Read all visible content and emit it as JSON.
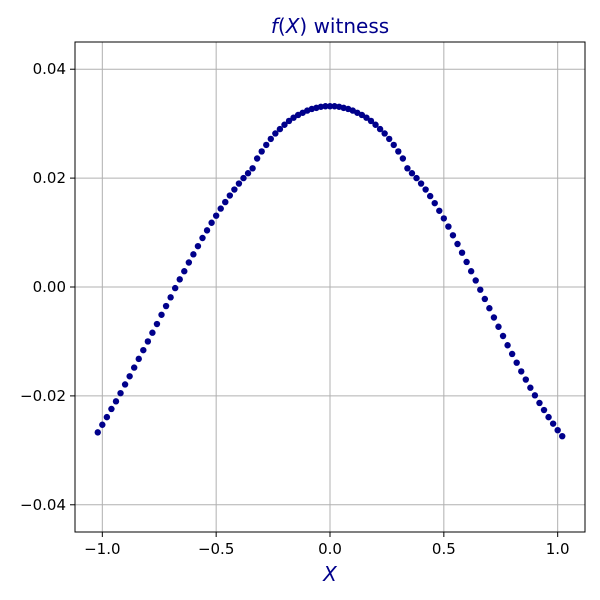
{
  "chart_data": {
    "type": "scatter",
    "title_func": "f",
    "title_open": "(",
    "title_var": "X",
    "title_close": ")",
    "title_rest": " witness",
    "xlabel": "X",
    "ylabel": "",
    "xlim": [
      -1.12,
      1.12
    ],
    "ylim": [
      -0.045,
      0.045
    ],
    "xticks": [
      -1.0,
      -0.5,
      0.0,
      0.5,
      1.0
    ],
    "xtick_labels": [
      "−1.0",
      "−0.5",
      "0.0",
      "0.5",
      "1.0"
    ],
    "yticks": [
      -0.04,
      -0.02,
      0.0,
      0.02,
      0.04
    ],
    "ytick_labels": [
      "−0.04",
      "−0.02",
      "0.00",
      "0.02",
      "0.04"
    ],
    "grid": true,
    "point_color": "#00008b",
    "series": [
      {
        "x": [
          -1.02,
          -1.0,
          -0.98,
          -0.96,
          -0.94,
          -0.92,
          -0.9,
          -0.88,
          -0.86,
          -0.84,
          -0.82,
          -0.8,
          -0.78,
          -0.76,
          -0.74,
          -0.72,
          -0.7,
          -0.68,
          -0.66,
          -0.64,
          -0.62,
          -0.6,
          -0.58,
          -0.56,
          -0.54,
          -0.52,
          -0.5,
          -0.48,
          -0.46,
          -0.44,
          -0.42,
          -0.4,
          -0.38,
          -0.36,
          -0.34,
          -0.32,
          -0.3,
          -0.28,
          -0.26,
          -0.24,
          -0.22,
          -0.2,
          -0.18,
          -0.16,
          -0.14,
          -0.12,
          -0.1,
          -0.08,
          -0.06,
          -0.04,
          -0.02,
          0.0,
          0.02,
          0.04,
          0.06,
          0.08,
          0.1,
          0.12,
          0.14,
          0.16,
          0.18,
          0.2,
          0.22,
          0.24,
          0.26,
          0.28,
          0.3,
          0.32,
          0.34,
          0.36,
          0.38,
          0.4,
          0.42,
          0.44,
          0.46,
          0.48,
          0.5,
          0.52,
          0.54,
          0.56,
          0.58,
          0.6,
          0.62,
          0.64,
          0.66,
          0.68,
          0.7,
          0.72,
          0.74,
          0.76,
          0.78,
          0.8,
          0.82,
          0.84,
          0.86,
          0.88,
          0.9,
          0.92,
          0.94,
          0.96,
          0.98,
          1.0,
          1.02
        ],
        "y": [
          -0.0267,
          -0.0253,
          -0.0239,
          -0.0224,
          -0.021,
          -0.0195,
          -0.0179,
          -0.0164,
          -0.0148,
          -0.0132,
          -0.0116,
          -0.01,
          -0.0084,
          -0.0068,
          -0.0051,
          -0.0035,
          -0.0019,
          -0.0002,
          0.0014,
          0.0029,
          0.0045,
          0.006,
          0.0075,
          0.009,
          0.0104,
          0.0118,
          0.0131,
          0.0144,
          0.0156,
          0.0168,
          0.0179,
          0.019,
          0.02,
          0.0209,
          0.0218,
          0.0236,
          0.0249,
          0.0261,
          0.0272,
          0.0282,
          0.029,
          0.0298,
          0.0305,
          0.0311,
          0.0316,
          0.032,
          0.0324,
          0.0327,
          0.0329,
          0.0331,
          0.0332,
          0.0332,
          0.0332,
          0.0331,
          0.0329,
          0.0327,
          0.0324,
          0.032,
          0.0316,
          0.0311,
          0.0305,
          0.0298,
          0.029,
          0.0282,
          0.0272,
          0.0261,
          0.0249,
          0.0236,
          0.0218,
          0.0209,
          0.02,
          0.019,
          0.0179,
          0.0167,
          0.0154,
          0.014,
          0.0126,
          0.0111,
          0.0095,
          0.0079,
          0.0063,
          0.0046,
          0.0029,
          0.0012,
          -0.0005,
          -0.0022,
          -0.0039,
          -0.0056,
          -0.0073,
          -0.009,
          -0.0107,
          -0.0123,
          -0.0139,
          -0.0155,
          -0.017,
          -0.0185,
          -0.0199,
          -0.0213,
          -0.0226,
          -0.0239,
          -0.0251,
          -0.0263,
          -0.0274
        ]
      }
    ]
  }
}
